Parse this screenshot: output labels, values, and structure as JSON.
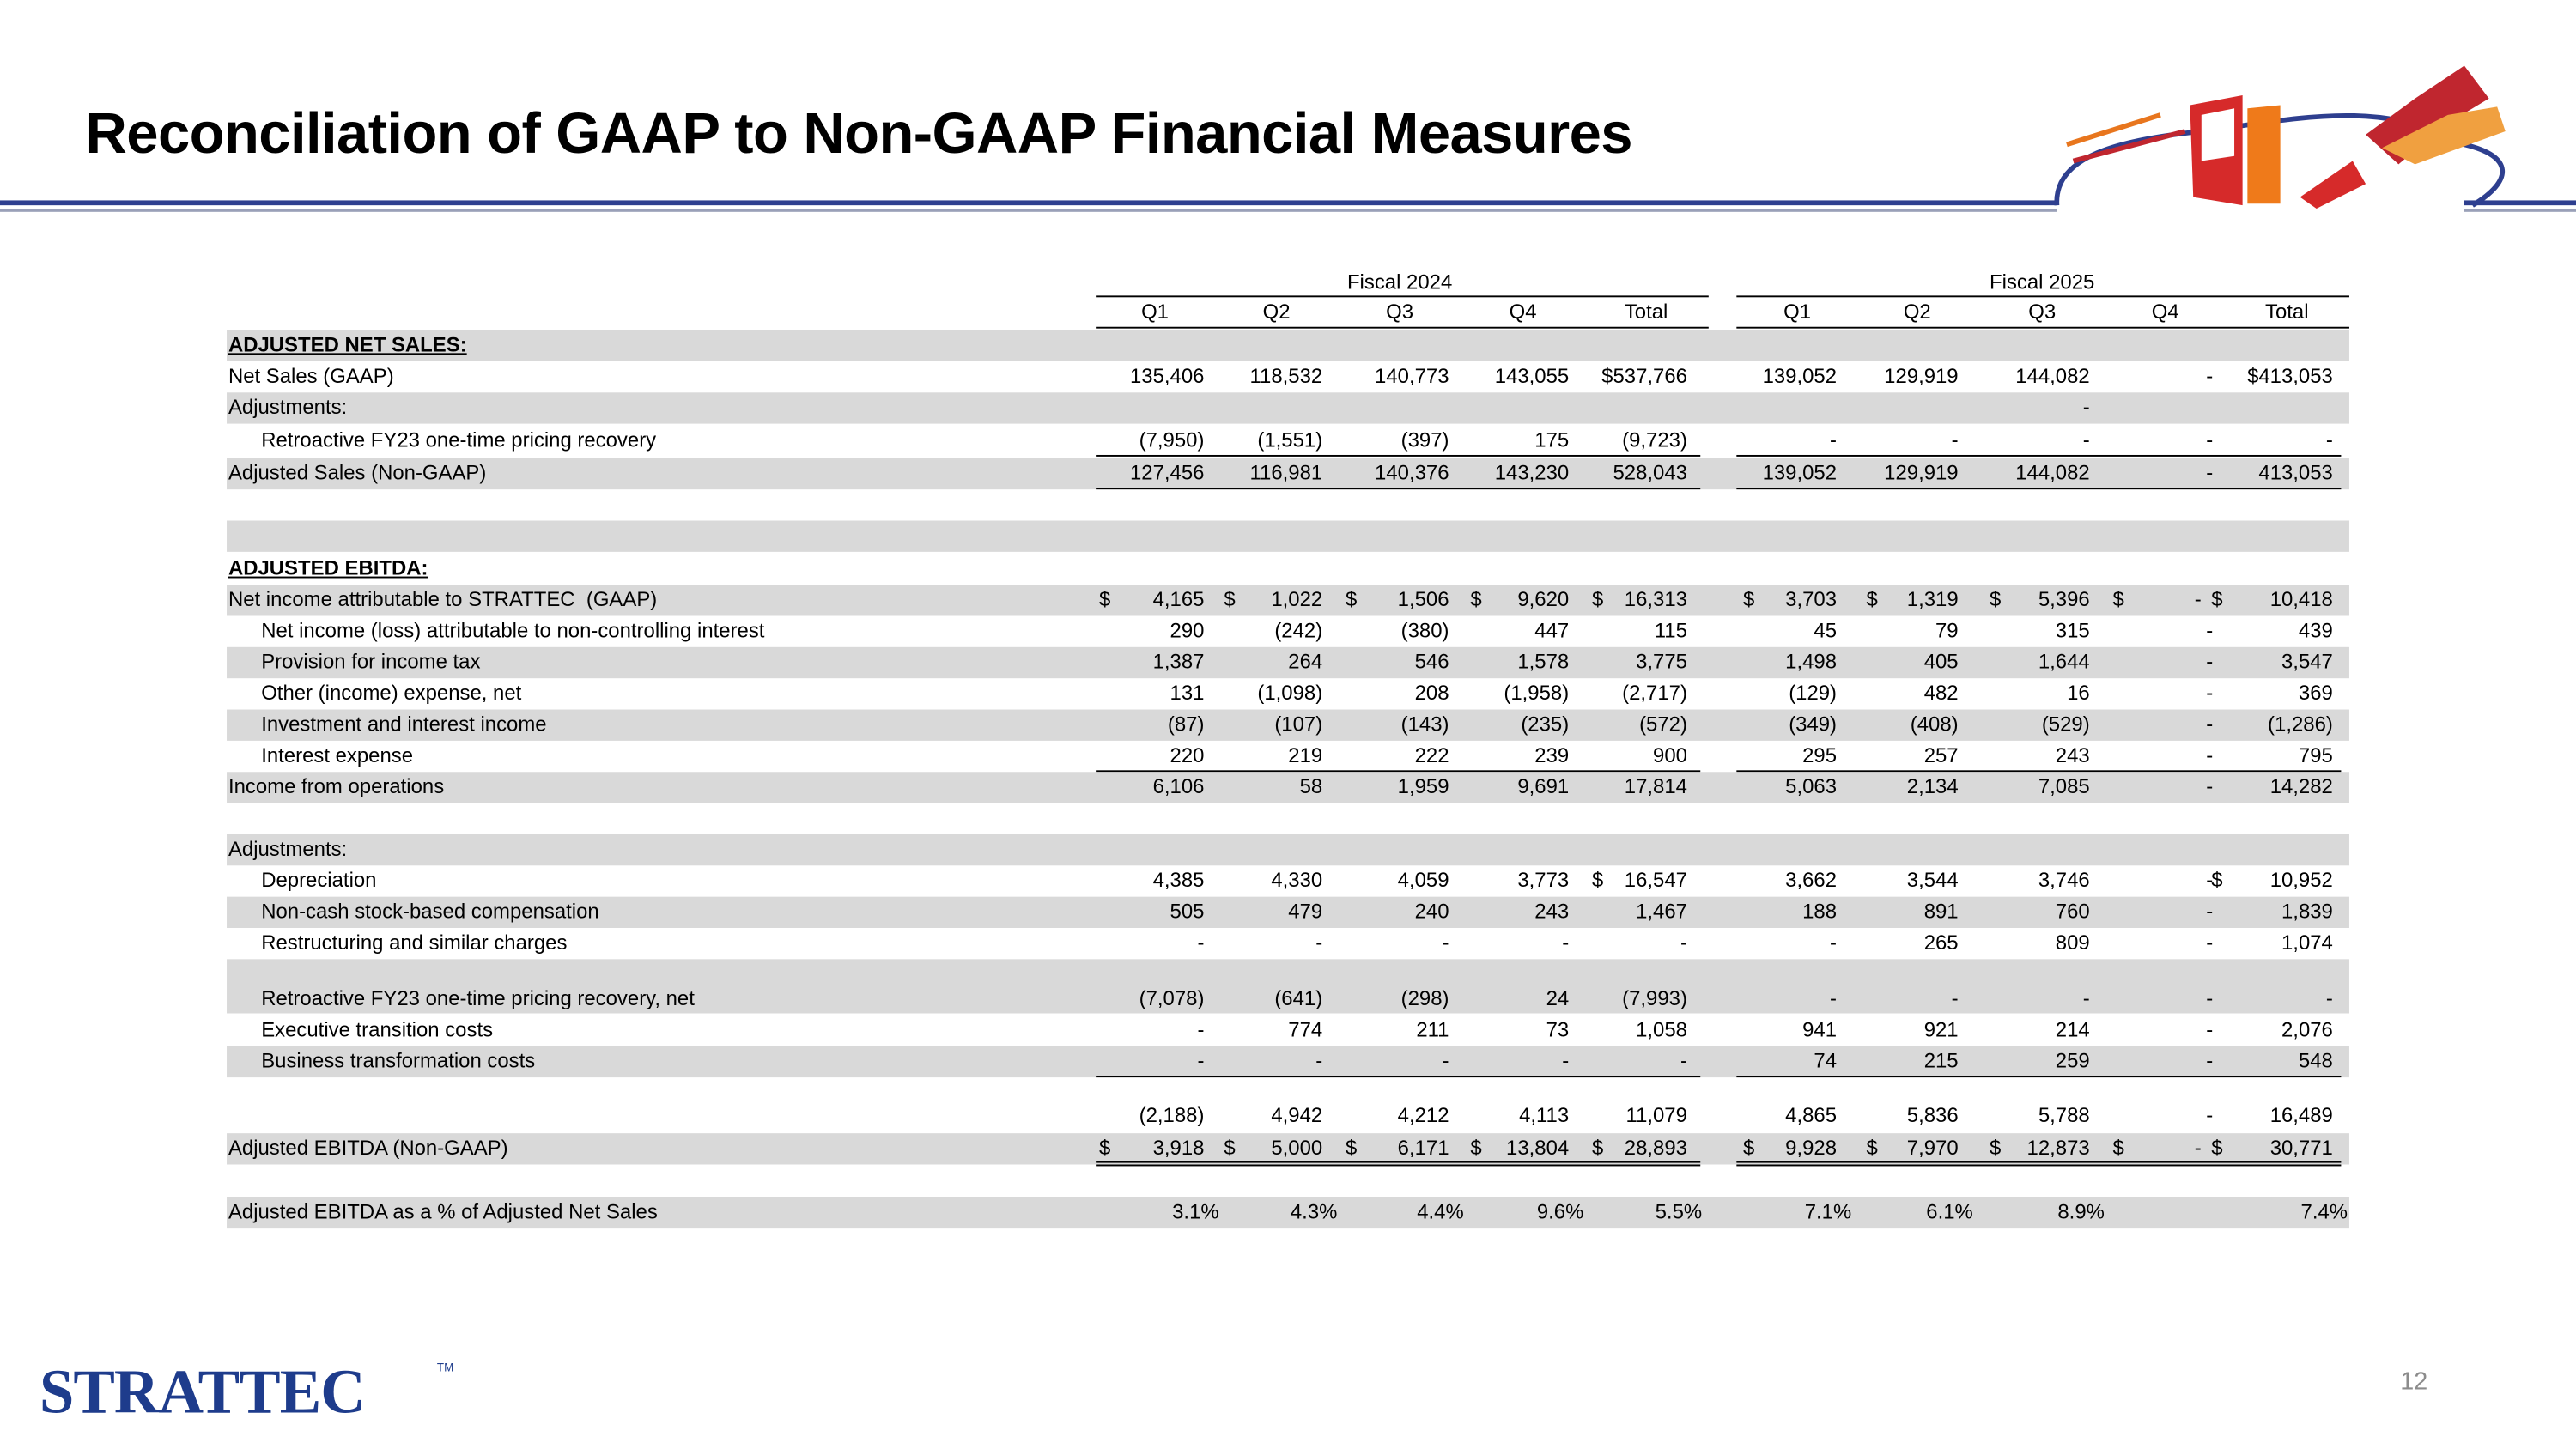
{
  "title": "Reconciliation of GAAP to Non-GAAP Financial Measures",
  "table": {
    "groups": [
      "Fiscal 2024",
      "Fiscal 2025"
    ],
    "columns": [
      "Q1",
      "Q2",
      "Q3",
      "Q4",
      "Total",
      "Q1",
      "Q2",
      "Q3",
      "Q4",
      "Total"
    ],
    "rows": [
      {
        "label": "ADJUSTED NET SALES:"
      },
      {
        "label": "Net Sales (GAAP)",
        "values": [
          "135,406",
          "118,532",
          "140,773",
          "143,055",
          "$537,766",
          "139,052",
          "129,919",
          "144,082",
          "-",
          "$413,053"
        ]
      },
      {
        "label": "Adjustments:",
        "values": [
          null,
          null,
          null,
          null,
          null,
          null,
          null,
          "-",
          null,
          null
        ]
      },
      {
        "label": "Retroactive FY23 one-time pricing recovery",
        "values": [
          "(7,950)",
          "(1,551)",
          "(397)",
          "175",
          "(9,723)",
          "-",
          "-",
          "-",
          "-",
          "-"
        ]
      },
      {
        "label": "Adjusted Sales (Non-GAAP)",
        "values": [
          "127,456",
          "116,981",
          "140,376",
          "143,230",
          "528,043",
          "139,052",
          "129,919",
          "144,082",
          "-",
          "413,053"
        ]
      },
      {
        "label": "ADJUSTED EBITDA:"
      },
      {
        "label": "Net income attributable to STRATTEC  (GAAP)",
        "values": [
          {
            "currency": "$",
            "amount": "4,165"
          },
          {
            "currency": "$",
            "amount": "1,022"
          },
          {
            "currency": "$",
            "amount": "1,506"
          },
          {
            "currency": "$",
            "amount": "9,620"
          },
          {
            "currency": "$",
            "amount": "16,313"
          },
          {
            "currency": "$",
            "amount": "3,703"
          },
          {
            "currency": "$",
            "amount": "1,319"
          },
          {
            "currency": "$",
            "amount": "5,396"
          },
          {
            "currency": "$",
            "amount": "-"
          },
          {
            "currency": "$",
            "amount": "10,418"
          }
        ]
      },
      {
        "label": "Net income (loss) attributable to non-controlling interest",
        "values": [
          "290",
          "(242)",
          "(380)",
          "447",
          "115",
          "45",
          "79",
          "315",
          "-",
          "439"
        ]
      },
      {
        "label": "Provision for income tax",
        "values": [
          "1,387",
          "264",
          "546",
          "1,578",
          "3,775",
          "1,498",
          "405",
          "1,644",
          "-",
          "3,547"
        ]
      },
      {
        "label": "Other (income) expense, net",
        "values": [
          "131",
          "(1,098)",
          "208",
          "(1,958)",
          "(2,717)",
          "(129)",
          "482",
          "16",
          "-",
          "369"
        ]
      },
      {
        "label": "Investment and interest income",
        "values": [
          "(87)",
          "(107)",
          "(143)",
          "(235)",
          "(572)",
          "(349)",
          "(408)",
          "(529)",
          "-",
          "(1,286)"
        ]
      },
      {
        "label": "Interest expense",
        "values": [
          "220",
          "219",
          "222",
          "239",
          "900",
          "295",
          "257",
          "243",
          "-",
          "795"
        ]
      },
      {
        "label": "Income from operations",
        "values": [
          "6,106",
          "58",
          "1,959",
          "9,691",
          "17,814",
          "5,063",
          "2,134",
          "7,085",
          "-",
          "14,282"
        ]
      },
      {
        "label": "Adjustments:"
      },
      {
        "label": "Depreciation",
        "values": [
          "4,385",
          "4,330",
          "4,059",
          "3,773",
          {
            "currency": "$",
            "amount": "16,547"
          },
          "3,662",
          "3,544",
          "3,746",
          "-",
          {
            "currency": "$",
            "amount": "10,952"
          }
        ]
      },
      {
        "label": "Non-cash stock-based compensation",
        "values": [
          "505",
          "479",
          "240",
          "243",
          "1,467",
          "188",
          "891",
          "760",
          "-",
          "1,839"
        ]
      },
      {
        "label": "Restructuring and similar charges",
        "values": [
          "-",
          "-",
          "-",
          "-",
          "-",
          "-",
          "265",
          "809",
          "-",
          "1,074"
        ]
      },
      {
        "label": "Retroactive FY23 one-time pricing recovery, net",
        "values": [
          "(7,078)",
          "(641)",
          "(298)",
          "24",
          "(7,993)",
          "-",
          "-",
          "-",
          "-",
          "-"
        ]
      },
      {
        "label": "Executive transition costs",
        "values": [
          "-",
          "774",
          "211",
          "73",
          "1,058",
          "941",
          "921",
          "214",
          "-",
          "2,076"
        ]
      },
      {
        "label": "Business transformation costs",
        "values": [
          "-",
          "-",
          "-",
          "-",
          "-",
          "74",
          "215",
          "259",
          "-",
          "548"
        ]
      },
      {
        "values": [
          "(2,188)",
          "4,942",
          "4,212",
          "4,113",
          "11,079",
          "4,865",
          "5,836",
          "5,788",
          "-",
          "16,489"
        ]
      },
      {
        "label": "Adjusted EBITDA (Non-GAAP)",
        "values": [
          {
            "currency": "$",
            "amount": "3,918"
          },
          {
            "currency": "$",
            "amount": "5,000"
          },
          {
            "currency": "$",
            "amount": "6,171"
          },
          {
            "currency": "$",
            "amount": "13,804"
          },
          {
            "currency": "$",
            "amount": "28,893"
          },
          {
            "currency": "$",
            "amount": "9,928"
          },
          {
            "currency": "$",
            "amount": "7,970"
          },
          {
            "currency": "$",
            "amount": "12,873"
          },
          {
            "currency": "$",
            "amount": "-"
          },
          {
            "currency": "$",
            "amount": "30,771"
          }
        ]
      },
      {
        "label": "Adjusted EBITDA as a % of Adjusted Net Sales",
        "values": [
          "3.1%",
          "4.3%",
          "4.4%",
          "9.6%",
          "5.5%",
          "7.1%",
          "6.1%",
          "8.9%",
          null,
          "7.4%"
        ]
      }
    ]
  },
  "logo": {
    "name": "STRATTEC",
    "mark": "TM"
  },
  "page_number": "12"
}
